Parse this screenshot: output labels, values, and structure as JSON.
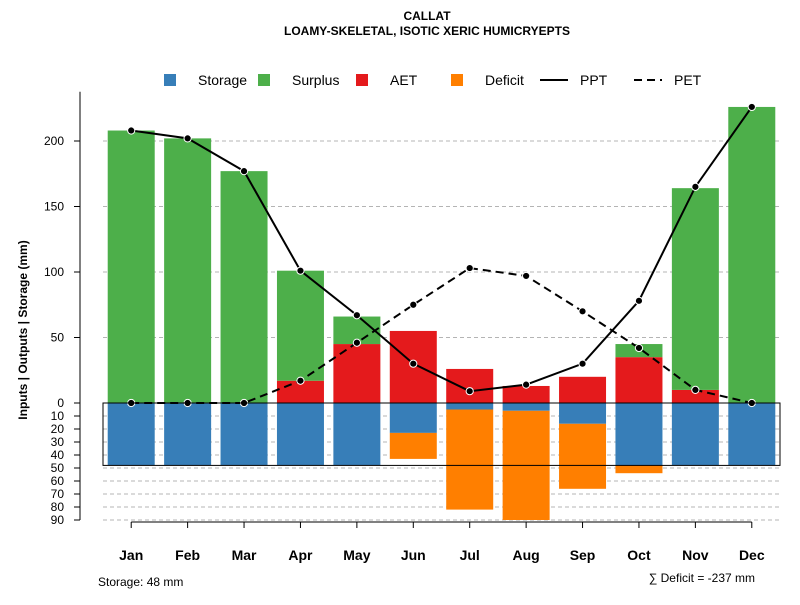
{
  "chart_data": {
    "type": "bar",
    "title": "CALLAT",
    "subtitle": "LOAMY-SKELETAL, ISOTIC XERIC HUMICRYEPTS",
    "ylabel": "Inputs | Outputs | Storage    (mm)",
    "categories": [
      "Jan",
      "Feb",
      "Mar",
      "Apr",
      "May",
      "Jun",
      "Jul",
      "Aug",
      "Sep",
      "Oct",
      "Nov",
      "Dec"
    ],
    "ylim": [
      -90,
      230
    ],
    "y_ticks_positive": [
      0,
      50,
      100,
      150,
      200
    ],
    "y_ticks_negative": [
      10,
      20,
      30,
      40,
      50,
      60,
      70,
      80,
      90
    ],
    "series": [
      {
        "name": "Storage",
        "color": "#377eb8",
        "values": [
          48,
          48,
          48,
          48,
          48,
          23,
          5,
          6,
          16,
          48,
          48,
          48
        ]
      },
      {
        "name": "Surplus",
        "color": "#4daf4a",
        "values": [
          208,
          202,
          177,
          84,
          21,
          0,
          0,
          0,
          0,
          10,
          154,
          226
        ]
      },
      {
        "name": "AET",
        "color": "#e41a1c",
        "values": [
          0,
          0,
          0,
          17,
          45,
          55,
          26,
          13,
          20,
          35,
          10,
          0
        ]
      },
      {
        "name": "Deficit",
        "color": "#ff7f00",
        "values": [
          0,
          0,
          0,
          0,
          0,
          20,
          77,
          84,
          50,
          6,
          0,
          0
        ]
      },
      {
        "name": "PPT",
        "style": "solid",
        "values": [
          208,
          202,
          177,
          101,
          67,
          30,
          9,
          14,
          30,
          78,
          165,
          226
        ]
      },
      {
        "name": "PET",
        "style": "dashed",
        "values": [
          0,
          0,
          0,
          17,
          46,
          75,
          103,
          97,
          70,
          42,
          10,
          0
        ]
      }
    ],
    "legend": [
      "Storage",
      "Surplus",
      "AET",
      "Deficit",
      "PPT",
      "PET"
    ],
    "legend_position": "top",
    "storage_label": "Storage: 48 mm",
    "deficit_label": "∑ Deficit = -237 mm"
  }
}
